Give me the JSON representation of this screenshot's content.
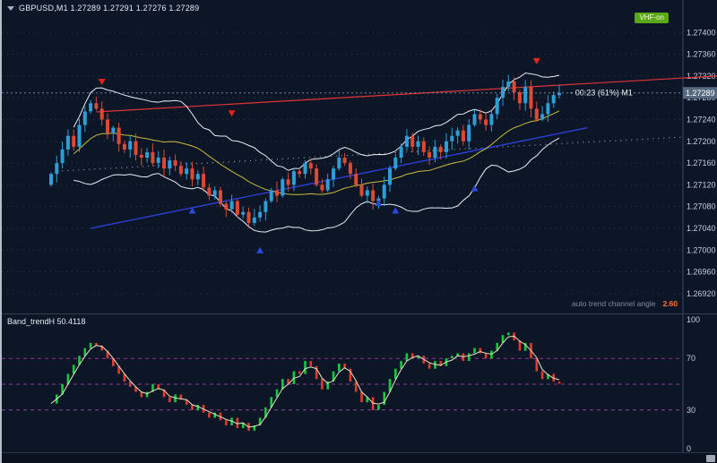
{
  "titlebar": {
    "symbol_ohlc": "GBPUSD,M1  1.27289 1.27291 1.27276 1.27289"
  },
  "topbar": {
    "vhf_button_label": "VHF-on"
  },
  "main_chart": {
    "auto_trend_label": "auto trend channel angle",
    "auto_trend_value": "2.60"
  },
  "indicator_panel": {
    "label": "Band_trendH 50.4118"
  },
  "colors": {
    "background": "#0d1626",
    "panel_separator": "#323e55",
    "grid": "#55657f",
    "axis_line": "#3a4763",
    "axis_text": "#c3cddc",
    "bull_candle": "#2e9fd6",
    "bear_candle": "#dd4a33",
    "band_line": "#e9eef6",
    "ma_line": "#c9bd3f",
    "trend_red": "#e03538",
    "trend_blue": "#2b3fd6",
    "dotted_line": "#c9d2e2",
    "sell_arrow": "#e8231d",
    "buy_arrow": "#2a49d8",
    "price_line": "#7c90ac",
    "badge_bg": "#56697f",
    "level_line": "#a93fa9",
    "osc_up": "#17c93f",
    "osc_down": "#e23b2e",
    "osc_line": "#e7e3c0"
  },
  "chart_data": [
    {
      "type": "candlestick",
      "symbol": "GBPUSD",
      "timeframe": "M1",
      "ohlc_display": {
        "open": 1.27289,
        "high": 1.27291,
        "low": 1.27276,
        "close": 1.27289
      },
      "price_range": [
        1.269,
        1.2744
      ],
      "y_axis_ticks": [
        "1.27400",
        "1.27360",
        "1.27320",
        "1.27280",
        "1.27240",
        "1.27200",
        "1.27160",
        "1.27120",
        "1.27080",
        "1.27040",
        "1.27000",
        "1.26960",
        "1.26920"
      ],
      "first_open": 1.2712,
      "closes": [
        1.2714,
        1.2716,
        1.27185,
        1.2721,
        1.2719,
        1.2723,
        1.27255,
        1.2727,
        1.2726,
        1.2724,
        1.27215,
        1.27225,
        1.27195,
        1.27185,
        1.272,
        1.27175,
        1.2717,
        1.2718,
        1.2716,
        1.2717,
        1.2715,
        1.27165,
        1.27155,
        1.2714,
        1.2715,
        1.2713,
        1.2714,
        1.27115,
        1.271,
        1.2711,
        1.27085,
        1.27075,
        1.2709,
        1.27065,
        1.2707,
        1.2705,
        1.2706,
        1.2707,
        1.2709,
        1.2711,
        1.271,
        1.2713,
        1.2712,
        1.27145,
        1.2714,
        1.2716,
        1.2715,
        1.2712,
        1.2711,
        1.2713,
        1.2715,
        1.2717,
        1.2716,
        1.2714,
        1.2712,
        1.271,
        1.2711,
        1.2709,
        1.27095,
        1.2712,
        1.2715,
        1.2717,
        1.2719,
        1.2721,
        1.2719,
        1.272,
        1.2718,
        1.2717,
        1.2719,
        1.2718,
        1.272,
        1.2721,
        1.2722,
        1.272,
        1.2723,
        1.2725,
        1.2724,
        1.2723,
        1.2725,
        1.2728,
        1.273,
        1.2731,
        1.2729,
        1.2727,
        1.273,
        1.2726,
        1.2724,
        1.2725,
        1.2727,
        1.27285,
        1.27289
      ],
      "overlays": {
        "bollinger": {
          "period": 18,
          "deviation": 2.0
        },
        "ma_period": 21,
        "auto_trend_channel": {
          "angle": 2.6,
          "upper": {
            "from_bar": 8,
            "from_price": 1.27254,
            "to_bar": 118,
            "to_price": 1.2732
          },
          "lower": {
            "from_bar": 7,
            "from_price": 1.2704,
            "to_bar": 95,
            "to_price": 1.27225
          }
        },
        "dotted_baseline": {
          "from_bar": 1,
          "from_price": 1.27145,
          "to_bar": 112,
          "to_price": 1.27208
        }
      },
      "signals": [
        {
          "type": "sell",
          "bar": 9,
          "price": 1.2731
        },
        {
          "type": "sell",
          "bar": 32,
          "price": 1.27252
        },
        {
          "type": "sell",
          "bar": 86,
          "price": 1.27348
        },
        {
          "type": "buy",
          "bar": 25,
          "price": 1.27072
        },
        {
          "type": "buy",
          "bar": 37,
          "price": 1.26999
        },
        {
          "type": "buy",
          "bar": 58,
          "price": 1.27086
        },
        {
          "type": "buy",
          "bar": 61,
          "price": 1.27072
        },
        {
          "type": "buy",
          "bar": 75,
          "price": 1.27113
        }
      ],
      "current_price": 1.27289,
      "current_price_label": "1.27289",
      "countdown": "- 00:23 (61%) M1"
    },
    {
      "type": "bar",
      "name": "Band_trendH",
      "current_value": 50.4118,
      "range": [
        0,
        100
      ],
      "levels": [
        70,
        50,
        30
      ],
      "y_axis_ticks": [
        "100",
        "70",
        "30",
        "0"
      ],
      "values": [
        35,
        42,
        50,
        58,
        65,
        72,
        78,
        82,
        80,
        76,
        70,
        64,
        58,
        52,
        48,
        44,
        40,
        44,
        50,
        46,
        40,
        36,
        42,
        38,
        34,
        30,
        34,
        28,
        24,
        28,
        22,
        18,
        24,
        16,
        20,
        14,
        18,
        24,
        32,
        40,
        46,
        54,
        50,
        60,
        58,
        68,
        64,
        54,
        46,
        52,
        60,
        66,
        62,
        52,
        44,
        36,
        40,
        30,
        34,
        44,
        54,
        62,
        68,
        74,
        70,
        72,
        66,
        62,
        68,
        64,
        70,
        72,
        74,
        68,
        74,
        78,
        74,
        70,
        76,
        82,
        88,
        90,
        84,
        76,
        82,
        70,
        60,
        54,
        58,
        52,
        50.41
      ]
    }
  ]
}
